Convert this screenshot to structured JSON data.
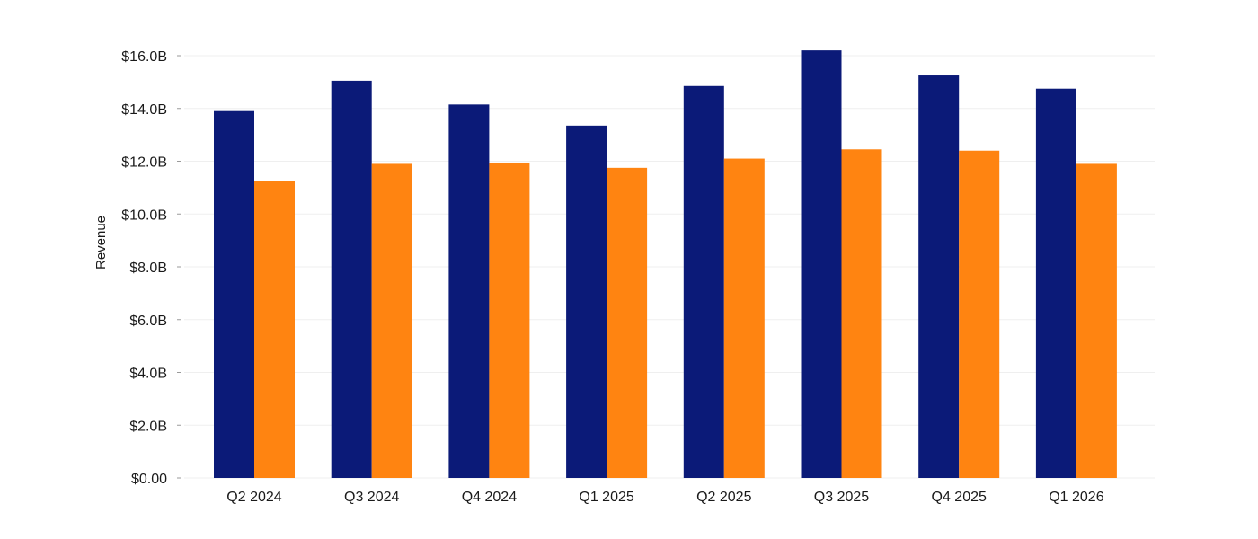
{
  "chart_data": {
    "type": "bar",
    "title": "",
    "xlabel": "",
    "ylabel": "Revenue",
    "categories": [
      "Q2 2024",
      "Q3 2024",
      "Q4 2024",
      "Q1 2025",
      "Q2 2025",
      "Q3 2025",
      "Q4 2025",
      "Q1 2026"
    ],
    "series": [
      {
        "color": "#0B1A78",
        "values": [
          13.9,
          15.05,
          14.15,
          13.35,
          14.85,
          16.2,
          15.25,
          14.75
        ]
      },
      {
        "color": "#FF8411",
        "values": [
          11.25,
          11.9,
          11.95,
          11.75,
          12.1,
          12.45,
          12.4,
          11.9
        ]
      }
    ],
    "ylim": [
      0,
      16
    ],
    "yticks": [
      {
        "value": 0,
        "label": "$0.00"
      },
      {
        "value": 2,
        "label": "$2.0B"
      },
      {
        "value": 4,
        "label": "$4.0B"
      },
      {
        "value": 6,
        "label": "$6.0B"
      },
      {
        "value": 8,
        "label": "$8.0B"
      },
      {
        "value": 10,
        "label": "$10.0B"
      },
      {
        "value": 12,
        "label": "$12.0B"
      },
      {
        "value": 14,
        "label": "$14.0B"
      },
      {
        "value": 16,
        "label": "$16.0B"
      }
    ],
    "grid": true,
    "legend": "none"
  }
}
